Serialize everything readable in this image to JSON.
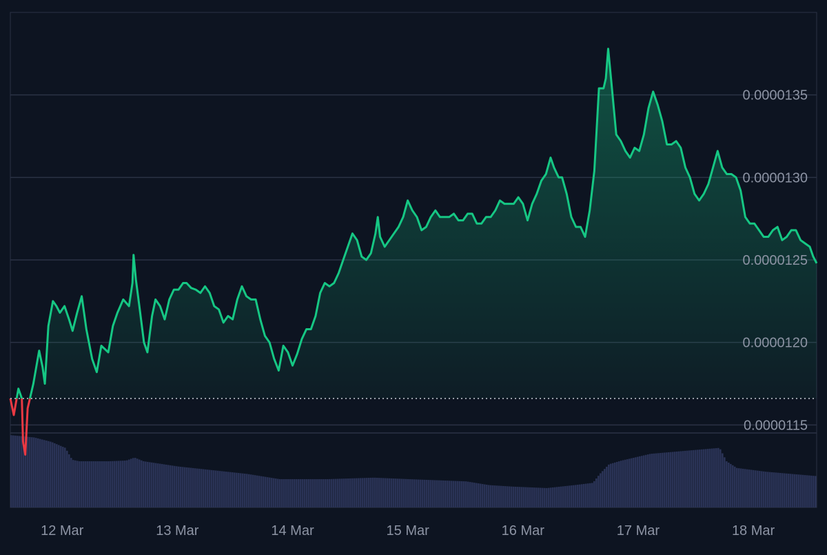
{
  "chart_data": {
    "type": "area",
    "title": "",
    "xlabel": "",
    "ylabel": "",
    "grid": true,
    "x_tick_labels": [
      "12 Mar",
      "13 Mar",
      "14 Mar",
      "15 Mar",
      "16 Mar",
      "17 Mar",
      "18 Mar"
    ],
    "x_tick_days": [
      12,
      13,
      14,
      15,
      16,
      17,
      18
    ],
    "xlim_days": [
      11.55,
      18.55
    ],
    "y_tick_labels": [
      "0.0000115",
      "0.0000120",
      "0.0000125",
      "0.0000130",
      "0.0000135"
    ],
    "y_ticks": [
      1.15e-05,
      1.2e-05,
      1.25e-05,
      1.3e-05,
      1.35e-05
    ],
    "ylim": [
      1.1e-05,
      1.4e-05
    ],
    "baseline": 1.166e-05,
    "colors": {
      "up_line": "#16c784",
      "down_line": "#ea3943",
      "volume": "#2a3356",
      "grid": "#2b3245",
      "baseline": "#c9cdd6",
      "background": "#0d1421"
    },
    "series": [
      {
        "values_by_day": [
          [
            11.55,
            1.166e-05
          ],
          [
            11.58,
            1.156e-05
          ],
          [
            11.62,
            1.172e-05
          ],
          [
            11.65,
            1.166e-05
          ],
          [
            11.66,
            1.14e-05
          ],
          [
            11.68,
            1.132e-05
          ],
          [
            11.7,
            1.16e-05
          ],
          [
            11.75,
            1.175e-05
          ],
          [
            11.8,
            1.195e-05
          ],
          [
            11.83,
            1.185e-05
          ],
          [
            11.85,
            1.175e-05
          ],
          [
            11.88,
            1.21e-05
          ],
          [
            11.92,
            1.225e-05
          ],
          [
            11.95,
            1.222e-05
          ],
          [
            11.98,
            1.218e-05
          ],
          [
            12.02,
            1.222e-05
          ],
          [
            12.06,
            1.214e-05
          ],
          [
            12.09,
            1.207e-05
          ],
          [
            12.13,
            1.218e-05
          ],
          [
            12.17,
            1.228e-05
          ],
          [
            12.21,
            1.208e-05
          ],
          [
            12.26,
            1.19e-05
          ],
          [
            12.3,
            1.182e-05
          ],
          [
            12.34,
            1.198e-05
          ],
          [
            12.4,
            1.194e-05
          ],
          [
            12.44,
            1.21e-05
          ],
          [
            12.48,
            1.218e-05
          ],
          [
            12.53,
            1.226e-05
          ],
          [
            12.58,
            1.222e-05
          ],
          [
            12.61,
            1.236e-05
          ],
          [
            12.62,
            1.253e-05
          ],
          [
            12.64,
            1.238e-05
          ],
          [
            12.67,
            1.222e-05
          ],
          [
            12.71,
            1.2e-05
          ],
          [
            12.74,
            1.194e-05
          ],
          [
            12.78,
            1.216e-05
          ],
          [
            12.81,
            1.226e-05
          ],
          [
            12.85,
            1.222e-05
          ],
          [
            12.89,
            1.214e-05
          ],
          [
            12.93,
            1.226e-05
          ],
          [
            12.97,
            1.232e-05
          ],
          [
            13.01,
            1.232e-05
          ],
          [
            13.05,
            1.236e-05
          ],
          [
            13.08,
            1.236e-05
          ],
          [
            13.12,
            1.233e-05
          ],
          [
            13.16,
            1.232e-05
          ],
          [
            13.2,
            1.23e-05
          ],
          [
            13.24,
            1.234e-05
          ],
          [
            13.28,
            1.23e-05
          ],
          [
            13.32,
            1.222e-05
          ],
          [
            13.36,
            1.22e-05
          ],
          [
            13.4,
            1.212e-05
          ],
          [
            13.44,
            1.216e-05
          ],
          [
            13.48,
            1.214e-05
          ],
          [
            13.52,
            1.226e-05
          ],
          [
            13.56,
            1.234e-05
          ],
          [
            13.6,
            1.228e-05
          ],
          [
            13.64,
            1.226e-05
          ],
          [
            13.68,
            1.226e-05
          ],
          [
            13.72,
            1.214e-05
          ],
          [
            13.76,
            1.204e-05
          ],
          [
            13.8,
            1.2e-05
          ],
          [
            13.84,
            1.19e-05
          ],
          [
            13.88,
            1.183e-05
          ],
          [
            13.92,
            1.198e-05
          ],
          [
            13.96,
            1.194e-05
          ],
          [
            14.0,
            1.186e-05
          ],
          [
            14.04,
            1.193e-05
          ],
          [
            14.08,
            1.202e-05
          ],
          [
            14.12,
            1.208e-05
          ],
          [
            14.16,
            1.208e-05
          ],
          [
            14.2,
            1.216e-05
          ],
          [
            14.24,
            1.23e-05
          ],
          [
            14.28,
            1.236e-05
          ],
          [
            14.32,
            1.234e-05
          ],
          [
            14.36,
            1.236e-05
          ],
          [
            14.4,
            1.242e-05
          ],
          [
            14.44,
            1.25e-05
          ],
          [
            14.48,
            1.258e-05
          ],
          [
            14.52,
            1.266e-05
          ],
          [
            14.56,
            1.262e-05
          ],
          [
            14.6,
            1.252e-05
          ],
          [
            14.64,
            1.25e-05
          ],
          [
            14.68,
            1.254e-05
          ],
          [
            14.72,
            1.266e-05
          ],
          [
            14.74,
            1.276e-05
          ],
          [
            14.76,
            1.264e-05
          ],
          [
            14.8,
            1.258e-05
          ],
          [
            14.84,
            1.262e-05
          ],
          [
            14.88,
            1.266e-05
          ],
          [
            14.92,
            1.27e-05
          ],
          [
            14.96,
            1.276e-05
          ],
          [
            15.0,
            1.286e-05
          ],
          [
            15.04,
            1.28e-05
          ],
          [
            15.08,
            1.276e-05
          ],
          [
            15.12,
            1.268e-05
          ],
          [
            15.16,
            1.27e-05
          ],
          [
            15.2,
            1.276e-05
          ],
          [
            15.24,
            1.28e-05
          ],
          [
            15.28,
            1.276e-05
          ],
          [
            15.32,
            1.276e-05
          ],
          [
            15.36,
            1.276e-05
          ],
          [
            15.4,
            1.278e-05
          ],
          [
            15.44,
            1.274e-05
          ],
          [
            15.48,
            1.274e-05
          ],
          [
            15.52,
            1.278e-05
          ],
          [
            15.56,
            1.278e-05
          ],
          [
            15.6,
            1.272e-05
          ],
          [
            15.64,
            1.272e-05
          ],
          [
            15.68,
            1.276e-05
          ],
          [
            15.72,
            1.276e-05
          ],
          [
            15.76,
            1.28e-05
          ],
          [
            15.8,
            1.286e-05
          ],
          [
            15.84,
            1.284e-05
          ],
          [
            15.88,
            1.284e-05
          ],
          [
            15.92,
            1.284e-05
          ],
          [
            15.96,
            1.288e-05
          ],
          [
            16.0,
            1.284e-05
          ],
          [
            16.04,
            1.274e-05
          ],
          [
            16.08,
            1.284e-05
          ],
          [
            16.12,
            1.29e-05
          ],
          [
            16.16,
            1.298e-05
          ],
          [
            16.2,
            1.302e-05
          ],
          [
            16.24,
            1.312e-05
          ],
          [
            16.27,
            1.306e-05
          ],
          [
            16.31,
            1.3e-05
          ],
          [
            16.34,
            1.3e-05
          ],
          [
            16.38,
            1.29e-05
          ],
          [
            16.42,
            1.276e-05
          ],
          [
            16.46,
            1.27e-05
          ],
          [
            16.5,
            1.27e-05
          ],
          [
            16.54,
            1.264e-05
          ],
          [
            16.58,
            1.28e-05
          ],
          [
            16.62,
            1.304e-05
          ],
          [
            16.66,
            1.354e-05
          ],
          [
            16.7,
            1.354e-05
          ],
          [
            16.72,
            1.36e-05
          ],
          [
            16.74,
            1.378e-05
          ],
          [
            16.77,
            1.356e-05
          ],
          [
            16.81,
            1.326e-05
          ],
          [
            16.85,
            1.322e-05
          ],
          [
            16.89,
            1.316e-05
          ],
          [
            16.93,
            1.312e-05
          ],
          [
            16.97,
            1.318e-05
          ],
          [
            17.01,
            1.316e-05
          ],
          [
            17.05,
            1.326e-05
          ],
          [
            17.09,
            1.342e-05
          ],
          [
            17.13,
            1.352e-05
          ],
          [
            17.17,
            1.344e-05
          ],
          [
            17.21,
            1.334e-05
          ],
          [
            17.25,
            1.32e-05
          ],
          [
            17.29,
            1.32e-05
          ],
          [
            17.33,
            1.322e-05
          ],
          [
            17.37,
            1.318e-05
          ],
          [
            17.41,
            1.306e-05
          ],
          [
            17.45,
            1.3e-05
          ],
          [
            17.49,
            1.29e-05
          ],
          [
            17.53,
            1.286e-05
          ],
          [
            17.57,
            1.29e-05
          ],
          [
            17.61,
            1.296e-05
          ],
          [
            17.65,
            1.306e-05
          ],
          [
            17.69,
            1.316e-05
          ],
          [
            17.73,
            1.306e-05
          ],
          [
            17.77,
            1.302e-05
          ],
          [
            17.81,
            1.302e-05
          ],
          [
            17.85,
            1.3e-05
          ],
          [
            17.89,
            1.292e-05
          ],
          [
            17.93,
            1.276e-05
          ],
          [
            17.97,
            1.272e-05
          ],
          [
            18.01,
            1.272e-05
          ],
          [
            18.05,
            1.268e-05
          ],
          [
            18.09,
            1.264e-05
          ],
          [
            18.13,
            1.264e-05
          ],
          [
            18.17,
            1.268e-05
          ],
          [
            18.21,
            1.27e-05
          ],
          [
            18.25,
            1.262e-05
          ],
          [
            18.29,
            1.264e-05
          ],
          [
            18.33,
            1.268e-05
          ],
          [
            18.37,
            1.268e-05
          ],
          [
            18.41,
            1.262e-05
          ],
          [
            18.45,
            1.26e-05
          ],
          [
            18.49,
            1.258e-05
          ],
          [
            18.52,
            1.252e-05
          ],
          [
            18.55,
            1.248e-05
          ]
        ]
      }
    ],
    "volume_relative": [
      [
        11.55,
        0.97
      ],
      [
        11.75,
        0.94
      ],
      [
        11.9,
        0.88
      ],
      [
        12.02,
        0.8
      ],
      [
        12.08,
        0.64
      ],
      [
        12.14,
        0.62
      ],
      [
        12.4,
        0.62
      ],
      [
        12.55,
        0.63
      ],
      [
        12.62,
        0.67
      ],
      [
        12.7,
        0.62
      ],
      [
        13.0,
        0.55
      ],
      [
        13.3,
        0.5
      ],
      [
        13.6,
        0.45
      ],
      [
        13.88,
        0.38
      ],
      [
        14.3,
        0.38
      ],
      [
        14.7,
        0.4
      ],
      [
        15.0,
        0.38
      ],
      [
        15.5,
        0.35
      ],
      [
        15.7,
        0.3
      ],
      [
        15.9,
        0.28
      ],
      [
        16.2,
        0.26
      ],
      [
        16.44,
        0.3
      ],
      [
        16.6,
        0.33
      ],
      [
        16.66,
        0.45
      ],
      [
        16.74,
        0.58
      ],
      [
        16.85,
        0.63
      ],
      [
        17.1,
        0.72
      ],
      [
        17.4,
        0.76
      ],
      [
        17.7,
        0.8
      ],
      [
        17.76,
        0.62
      ],
      [
        17.85,
        0.53
      ],
      [
        18.1,
        0.48
      ],
      [
        18.4,
        0.44
      ],
      [
        18.55,
        0.42
      ]
    ]
  }
}
